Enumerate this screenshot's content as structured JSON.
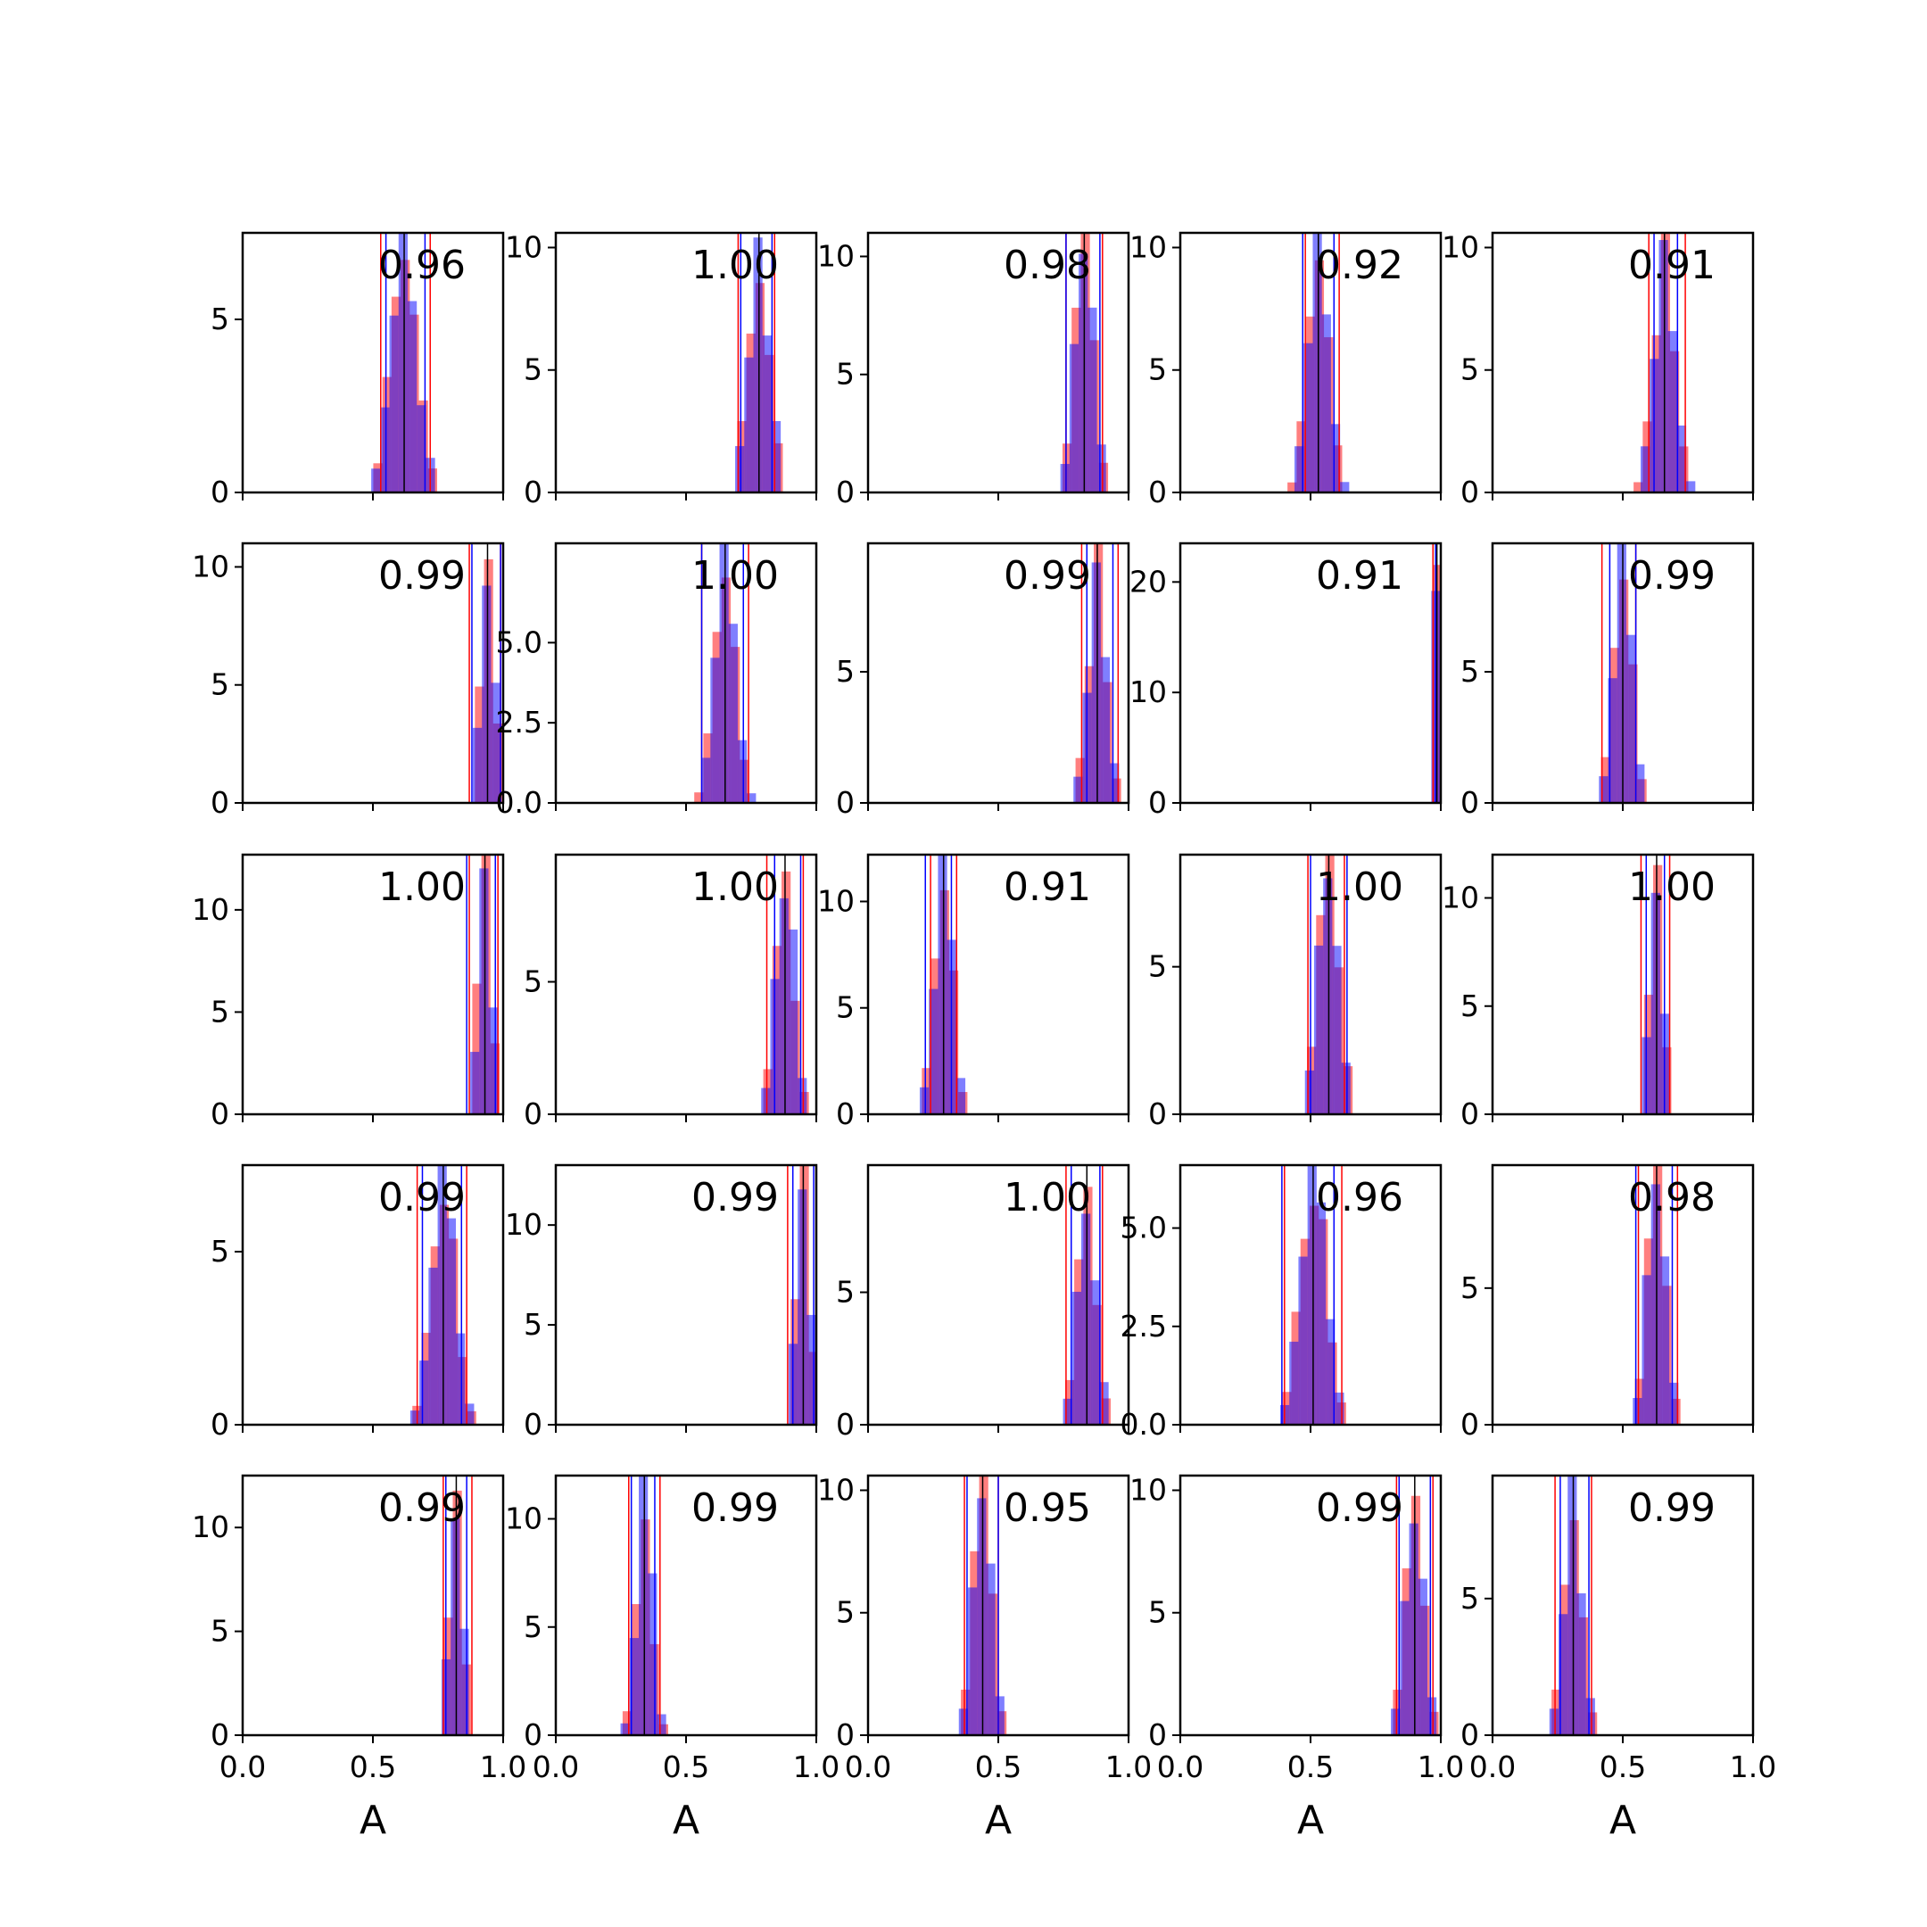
{
  "chart_data": {
    "type": "histogram-grid",
    "rows": 5,
    "cols": 5,
    "xlabel": "A",
    "xlim": [
      0,
      1
    ],
    "xticks": [
      "0.0",
      "0.5",
      "1.0"
    ],
    "colors": {
      "red": "#ff0000",
      "blue": "#0000ff",
      "overlap": "#7f3fbf",
      "line": "#000000"
    },
    "panels": [
      {
        "label": "0.96",
        "ymax": 7.5,
        "yticks": [
          [
            0,
            "0"
          ],
          [
            5,
            "5"
          ]
        ],
        "mean": 0.62,
        "sd": 0.05,
        "peak": 7.0,
        "red_lines": [
          0.53,
          0.72
        ],
        "blue_lines": [
          0.55,
          0.7
        ]
      },
      {
        "label": "1.00",
        "ymax": 10.6,
        "yticks": [
          [
            0,
            "0"
          ],
          [
            5,
            "5"
          ],
          [
            10,
            "10"
          ]
        ],
        "mean": 0.78,
        "sd": 0.04,
        "peak": 10.0,
        "red_lines": [
          0.7,
          0.84
        ],
        "blue_lines": [
          0.71,
          0.83
        ]
      },
      {
        "label": "0.98",
        "ymax": 11.0,
        "yticks": [
          [
            0,
            "0"
          ],
          [
            5,
            "5"
          ],
          [
            10,
            "10"
          ]
        ],
        "mean": 0.83,
        "sd": 0.035,
        "peak": 10.8,
        "red_lines": [
          0.76,
          0.9
        ],
        "blue_lines": [
          0.76,
          0.89
        ]
      },
      {
        "label": "0.92",
        "ymax": 10.6,
        "yticks": [
          [
            0,
            "0"
          ],
          [
            5,
            "5"
          ],
          [
            10,
            "10"
          ]
        ],
        "mean": 0.53,
        "sd": 0.04,
        "peak": 10.0,
        "red_lines": [
          0.48,
          0.61
        ],
        "blue_lines": [
          0.47,
          0.59
        ]
      },
      {
        "label": "0.91",
        "ymax": 10.6,
        "yticks": [
          [
            0,
            "0"
          ],
          [
            5,
            "5"
          ],
          [
            10,
            "10"
          ]
        ],
        "mean": 0.66,
        "sd": 0.04,
        "peak": 10.0,
        "red_lines": [
          0.6,
          0.74
        ],
        "blue_lines": [
          0.62,
          0.71
        ]
      },
      {
        "label": "0.99",
        "ymax": 11.0,
        "yticks": [
          [
            0,
            "0"
          ],
          [
            5,
            "5"
          ],
          [
            10,
            "10"
          ]
        ],
        "mean": 0.94,
        "sd": 0.025,
        "peak": 10.0,
        "red_lines": [
          0.87,
          0.99
        ],
        "blue_lines": [
          0.88,
          0.99
        ]
      },
      {
        "label": "1.00",
        "ymax": 8.1,
        "yticks": [
          [
            0,
            "0.0"
          ],
          [
            2.5,
            "2.5"
          ],
          [
            5,
            "5.0"
          ]
        ],
        "mean": 0.65,
        "sd": 0.04,
        "peak": 7.5,
        "red_lines": [
          0.56,
          0.74
        ],
        "blue_lines": [
          0.56,
          0.72
        ]
      },
      {
        "label": "0.99",
        "ymax": 9.9,
        "yticks": [
          [
            0,
            "0"
          ],
          [
            5,
            "5"
          ]
        ],
        "mean": 0.88,
        "sd": 0.035,
        "peak": 9.0,
        "red_lines": [
          0.82,
          0.96
        ],
        "blue_lines": [
          0.84,
          0.94
        ]
      },
      {
        "label": "0.91",
        "ymax": 23.5,
        "yticks": [
          [
            0,
            "0"
          ],
          [
            10,
            "10"
          ],
          [
            20,
            "20"
          ]
        ],
        "mean": 0.985,
        "sd": 0.012,
        "peak": 22.0,
        "red_lines": [
          0.97,
          1.0
        ],
        "blue_lines": [
          0.98,
          1.0
        ]
      },
      {
        "label": "0.99",
        "ymax": 9.9,
        "yticks": [
          [
            0,
            "0"
          ],
          [
            5,
            "5"
          ]
        ],
        "mean": 0.5,
        "sd": 0.035,
        "peak": 9.2,
        "red_lines": [
          0.42,
          0.55
        ],
        "blue_lines": [
          0.45,
          0.55
        ]
      },
      {
        "label": "1.00",
        "ymax": 12.7,
        "yticks": [
          [
            0,
            "0"
          ],
          [
            5,
            "5"
          ],
          [
            10,
            "10"
          ]
        ],
        "mean": 0.93,
        "sd": 0.025,
        "peak": 12.0,
        "red_lines": [
          0.87,
          0.98
        ],
        "blue_lines": [
          0.86,
          0.97
        ]
      },
      {
        "label": "1.00",
        "ymax": 9.8,
        "yticks": [
          [
            0,
            "0"
          ],
          [
            5,
            "5"
          ]
        ],
        "mean": 0.88,
        "sd": 0.035,
        "peak": 9.0,
        "red_lines": [
          0.81,
          0.95
        ],
        "blue_lines": [
          0.84,
          0.94
        ]
      },
      {
        "label": "0.91",
        "ymax": 12.2,
        "yticks": [
          [
            0,
            "0"
          ],
          [
            5,
            "5"
          ],
          [
            10,
            "10"
          ]
        ],
        "mean": 0.29,
        "sd": 0.035,
        "peak": 11.5,
        "red_lines": [
          0.24,
          0.34
        ],
        "blue_lines": [
          0.22,
          0.32
        ]
      },
      {
        "label": "1.00",
        "ymax": 8.8,
        "yticks": [
          [
            0,
            "0"
          ],
          [
            5,
            "5"
          ]
        ],
        "mean": 0.57,
        "sd": 0.04,
        "peak": 8.0,
        "red_lines": [
          0.49,
          0.63
        ],
        "blue_lines": [
          0.5,
          0.64
        ]
      },
      {
        "label": "1.00",
        "ymax": 12.0,
        "yticks": [
          [
            0,
            "0"
          ],
          [
            5,
            "5"
          ],
          [
            10,
            "10"
          ]
        ],
        "mean": 0.63,
        "sd": 0.025,
        "peak": 11.5,
        "red_lines": [
          0.57,
          0.68
        ],
        "blue_lines": [
          0.59,
          0.66
        ]
      },
      {
        "label": "0.99",
        "ymax": 7.5,
        "yticks": [
          [
            0,
            "0"
          ],
          [
            5,
            "5"
          ]
        ],
        "mean": 0.77,
        "sd": 0.045,
        "peak": 7.0,
        "red_lines": [
          0.67,
          0.86
        ],
        "blue_lines": [
          0.69,
          0.84
        ]
      },
      {
        "label": "0.99",
        "ymax": 13.0,
        "yticks": [
          [
            0,
            "0"
          ],
          [
            5,
            "5"
          ],
          [
            10,
            "10"
          ]
        ],
        "mean": 0.95,
        "sd": 0.025,
        "peak": 12.0,
        "red_lines": [
          0.89,
          1.0
        ],
        "blue_lines": [
          0.91,
          0.99
        ]
      },
      {
        "label": "1.00",
        "ymax": 9.8,
        "yticks": [
          [
            0,
            "0"
          ],
          [
            5,
            "5"
          ]
        ],
        "mean": 0.84,
        "sd": 0.035,
        "peak": 9.0,
        "red_lines": [
          0.76,
          0.9
        ],
        "blue_lines": [
          0.78,
          0.89
        ]
      },
      {
        "label": "0.96",
        "ymax": 6.6,
        "yticks": [
          [
            0,
            "0.0"
          ],
          [
            2.5,
            "2.5"
          ],
          [
            5,
            "5.0"
          ]
        ],
        "mean": 0.51,
        "sd": 0.05,
        "peak": 6.2,
        "red_lines": [
          0.4,
          0.62
        ],
        "blue_lines": [
          0.39,
          0.59
        ]
      },
      {
        "label": "0.98",
        "ymax": 9.5,
        "yticks": [
          [
            0,
            "0"
          ],
          [
            5,
            "5"
          ]
        ],
        "mean": 0.63,
        "sd": 0.035,
        "peak": 9.0,
        "red_lines": [
          0.56,
          0.71
        ],
        "blue_lines": [
          0.55,
          0.69
        ]
      },
      {
        "label": "0.99",
        "ymax": 12.5,
        "yticks": [
          [
            0,
            "0"
          ],
          [
            5,
            "5"
          ],
          [
            10,
            "10"
          ]
        ],
        "mean": 0.82,
        "sd": 0.025,
        "peak": 12.0,
        "red_lines": [
          0.77,
          0.88
        ],
        "blue_lines": [
          0.78,
          0.86
        ]
      },
      {
        "label": "0.99",
        "ymax": 12.0,
        "yticks": [
          [
            0,
            "0"
          ],
          [
            5,
            "5"
          ],
          [
            10,
            "10"
          ]
        ],
        "mean": 0.34,
        "sd": 0.03,
        "peak": 11.3,
        "red_lines": [
          0.28,
          0.4
        ],
        "blue_lines": [
          0.29,
          0.38
        ]
      },
      {
        "label": "0.95",
        "ymax": 10.6,
        "yticks": [
          [
            0,
            "0"
          ],
          [
            5,
            "5"
          ],
          [
            10,
            "10"
          ]
        ],
        "mean": 0.44,
        "sd": 0.035,
        "peak": 10.0,
        "red_lines": [
          0.37,
          0.5
        ],
        "blue_lines": [
          0.38,
          0.5
        ]
      },
      {
        "label": "0.99",
        "ymax": 10.6,
        "yticks": [
          [
            0,
            "0"
          ],
          [
            5,
            "5"
          ],
          [
            10,
            "10"
          ]
        ],
        "mean": 0.9,
        "sd": 0.035,
        "peak": 10.0,
        "red_lines": [
          0.83,
          0.97
        ],
        "blue_lines": [
          0.84,
          0.96
        ]
      },
      {
        "label": "0.99",
        "ymax": 9.5,
        "yticks": [
          [
            0,
            "0"
          ],
          [
            5,
            "5"
          ]
        ],
        "mean": 0.31,
        "sd": 0.035,
        "peak": 9.0,
        "red_lines": [
          0.24,
          0.38
        ],
        "blue_lines": [
          0.26,
          0.37
        ]
      }
    ]
  }
}
